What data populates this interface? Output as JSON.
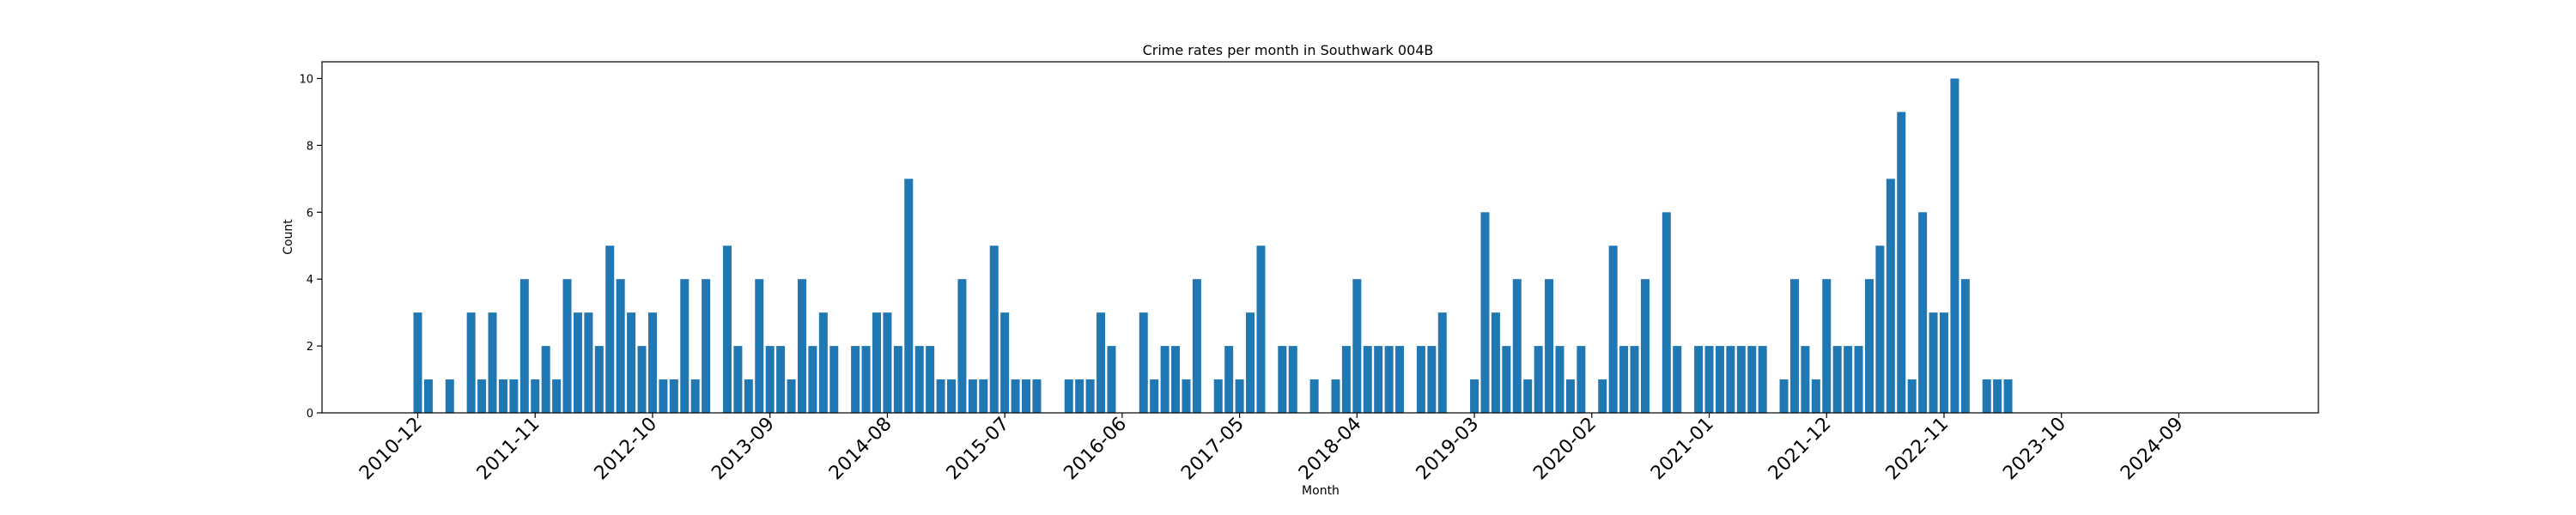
{
  "chart_data": {
    "type": "bar",
    "title": "Crime rates per month in Southwark 004B",
    "xlabel": "Month",
    "ylabel": "Count",
    "ylim": [
      0,
      10.5
    ],
    "yticks": [
      0,
      2,
      4,
      6,
      8,
      10
    ],
    "xtick_labels": [
      "2010-12",
      "2011-11",
      "2012-10",
      "2013-09",
      "2014-08",
      "2015-07",
      "2016-06",
      "2017-05",
      "2018-04",
      "2019-03",
      "2020-02",
      "2021-01",
      "2021-12",
      "2022-11",
      "2023-10",
      "2024-09"
    ],
    "bar_color": "#1f77b4",
    "grid": false,
    "x_start": "2010-12",
    "values": [
      3,
      1,
      0,
      1,
      0,
      3,
      1,
      3,
      1,
      1,
      4,
      1,
      2,
      1,
      4,
      3,
      3,
      2,
      5,
      4,
      3,
      2,
      3,
      1,
      1,
      4,
      1,
      4,
      0,
      5,
      2,
      1,
      4,
      2,
      2,
      1,
      4,
      2,
      3,
      2,
      0,
      2,
      2,
      3,
      3,
      2,
      7,
      2,
      2,
      1,
      1,
      4,
      1,
      1,
      5,
      3,
      1,
      1,
      1,
      0,
      0,
      1,
      1,
      1,
      3,
      2,
      0,
      0,
      3,
      1,
      2,
      2,
      1,
      4,
      0,
      1,
      2,
      1,
      3,
      5,
      0,
      2,
      2,
      0,
      1,
      0,
      1,
      2,
      4,
      2,
      2,
      2,
      2,
      0,
      2,
      2,
      3,
      0,
      0,
      1,
      6,
      3,
      2,
      4,
      1,
      2,
      4,
      2,
      1,
      2,
      0,
      1,
      5,
      2,
      2,
      4,
      0,
      6,
      2,
      0,
      2,
      2,
      2,
      2,
      2,
      2,
      2,
      0,
      1,
      4,
      2,
      1,
      4,
      2,
      2,
      2,
      4,
      5,
      7,
      9,
      1,
      6,
      3,
      3,
      10,
      4,
      0,
      1,
      1,
      1
    ]
  }
}
